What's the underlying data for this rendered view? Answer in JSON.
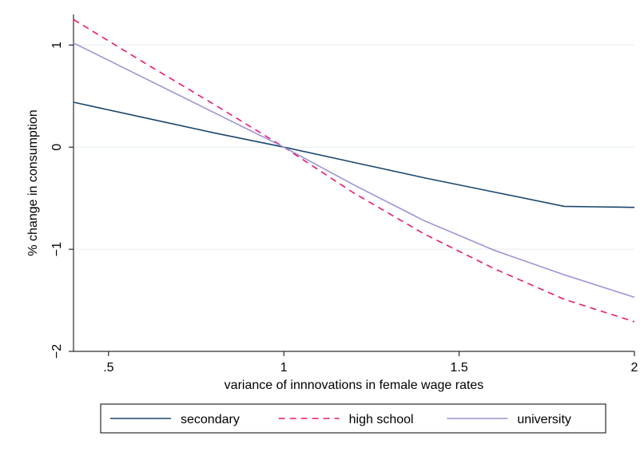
{
  "chart_data": {
    "type": "line",
    "title": "",
    "xlabel": "variance of innnovations in female wage rates",
    "ylabel": "% change in consumption",
    "xlim": [
      0.4,
      2.0
    ],
    "ylim": [
      -2.0,
      1.3
    ],
    "xticks": [
      0.5,
      1,
      1.5,
      2
    ],
    "xtick_labels": [
      ".5",
      "1",
      "1.5",
      "2"
    ],
    "yticks": [
      -2,
      -1,
      0,
      1
    ],
    "ytick_labels": [
      "−2",
      "−1",
      "0",
      "1"
    ],
    "grid": "horizontal",
    "legend_position": "bottom",
    "series": [
      {
        "name": "secondary",
        "color": "#1a476f",
        "dash": "solid",
        "x": [
          0.4,
          0.6,
          0.8,
          1.0,
          1.2,
          1.4,
          1.6,
          1.8,
          2.0
        ],
        "y": [
          0.44,
          0.29,
          0.14,
          0.0,
          -0.15,
          -0.3,
          -0.44,
          -0.58,
          -0.59
        ]
      },
      {
        "name": "high school",
        "color": "#e8196f",
        "dash": "dashed",
        "x": [
          0.4,
          0.6,
          0.8,
          1.0,
          1.2,
          1.4,
          1.6,
          1.8,
          2.0
        ],
        "y": [
          1.25,
          0.83,
          0.42,
          0.0,
          -0.45,
          -0.85,
          -1.19,
          -1.49,
          -1.71
        ]
      },
      {
        "name": "university",
        "color": "#9b93d2",
        "dash": "solid",
        "x": [
          0.4,
          0.6,
          0.8,
          1.0,
          1.2,
          1.4,
          1.6,
          1.8,
          2.0
        ],
        "y": [
          1.02,
          0.68,
          0.34,
          0.0,
          -0.37,
          -0.72,
          -1.01,
          -1.25,
          -1.47
        ]
      }
    ]
  }
}
